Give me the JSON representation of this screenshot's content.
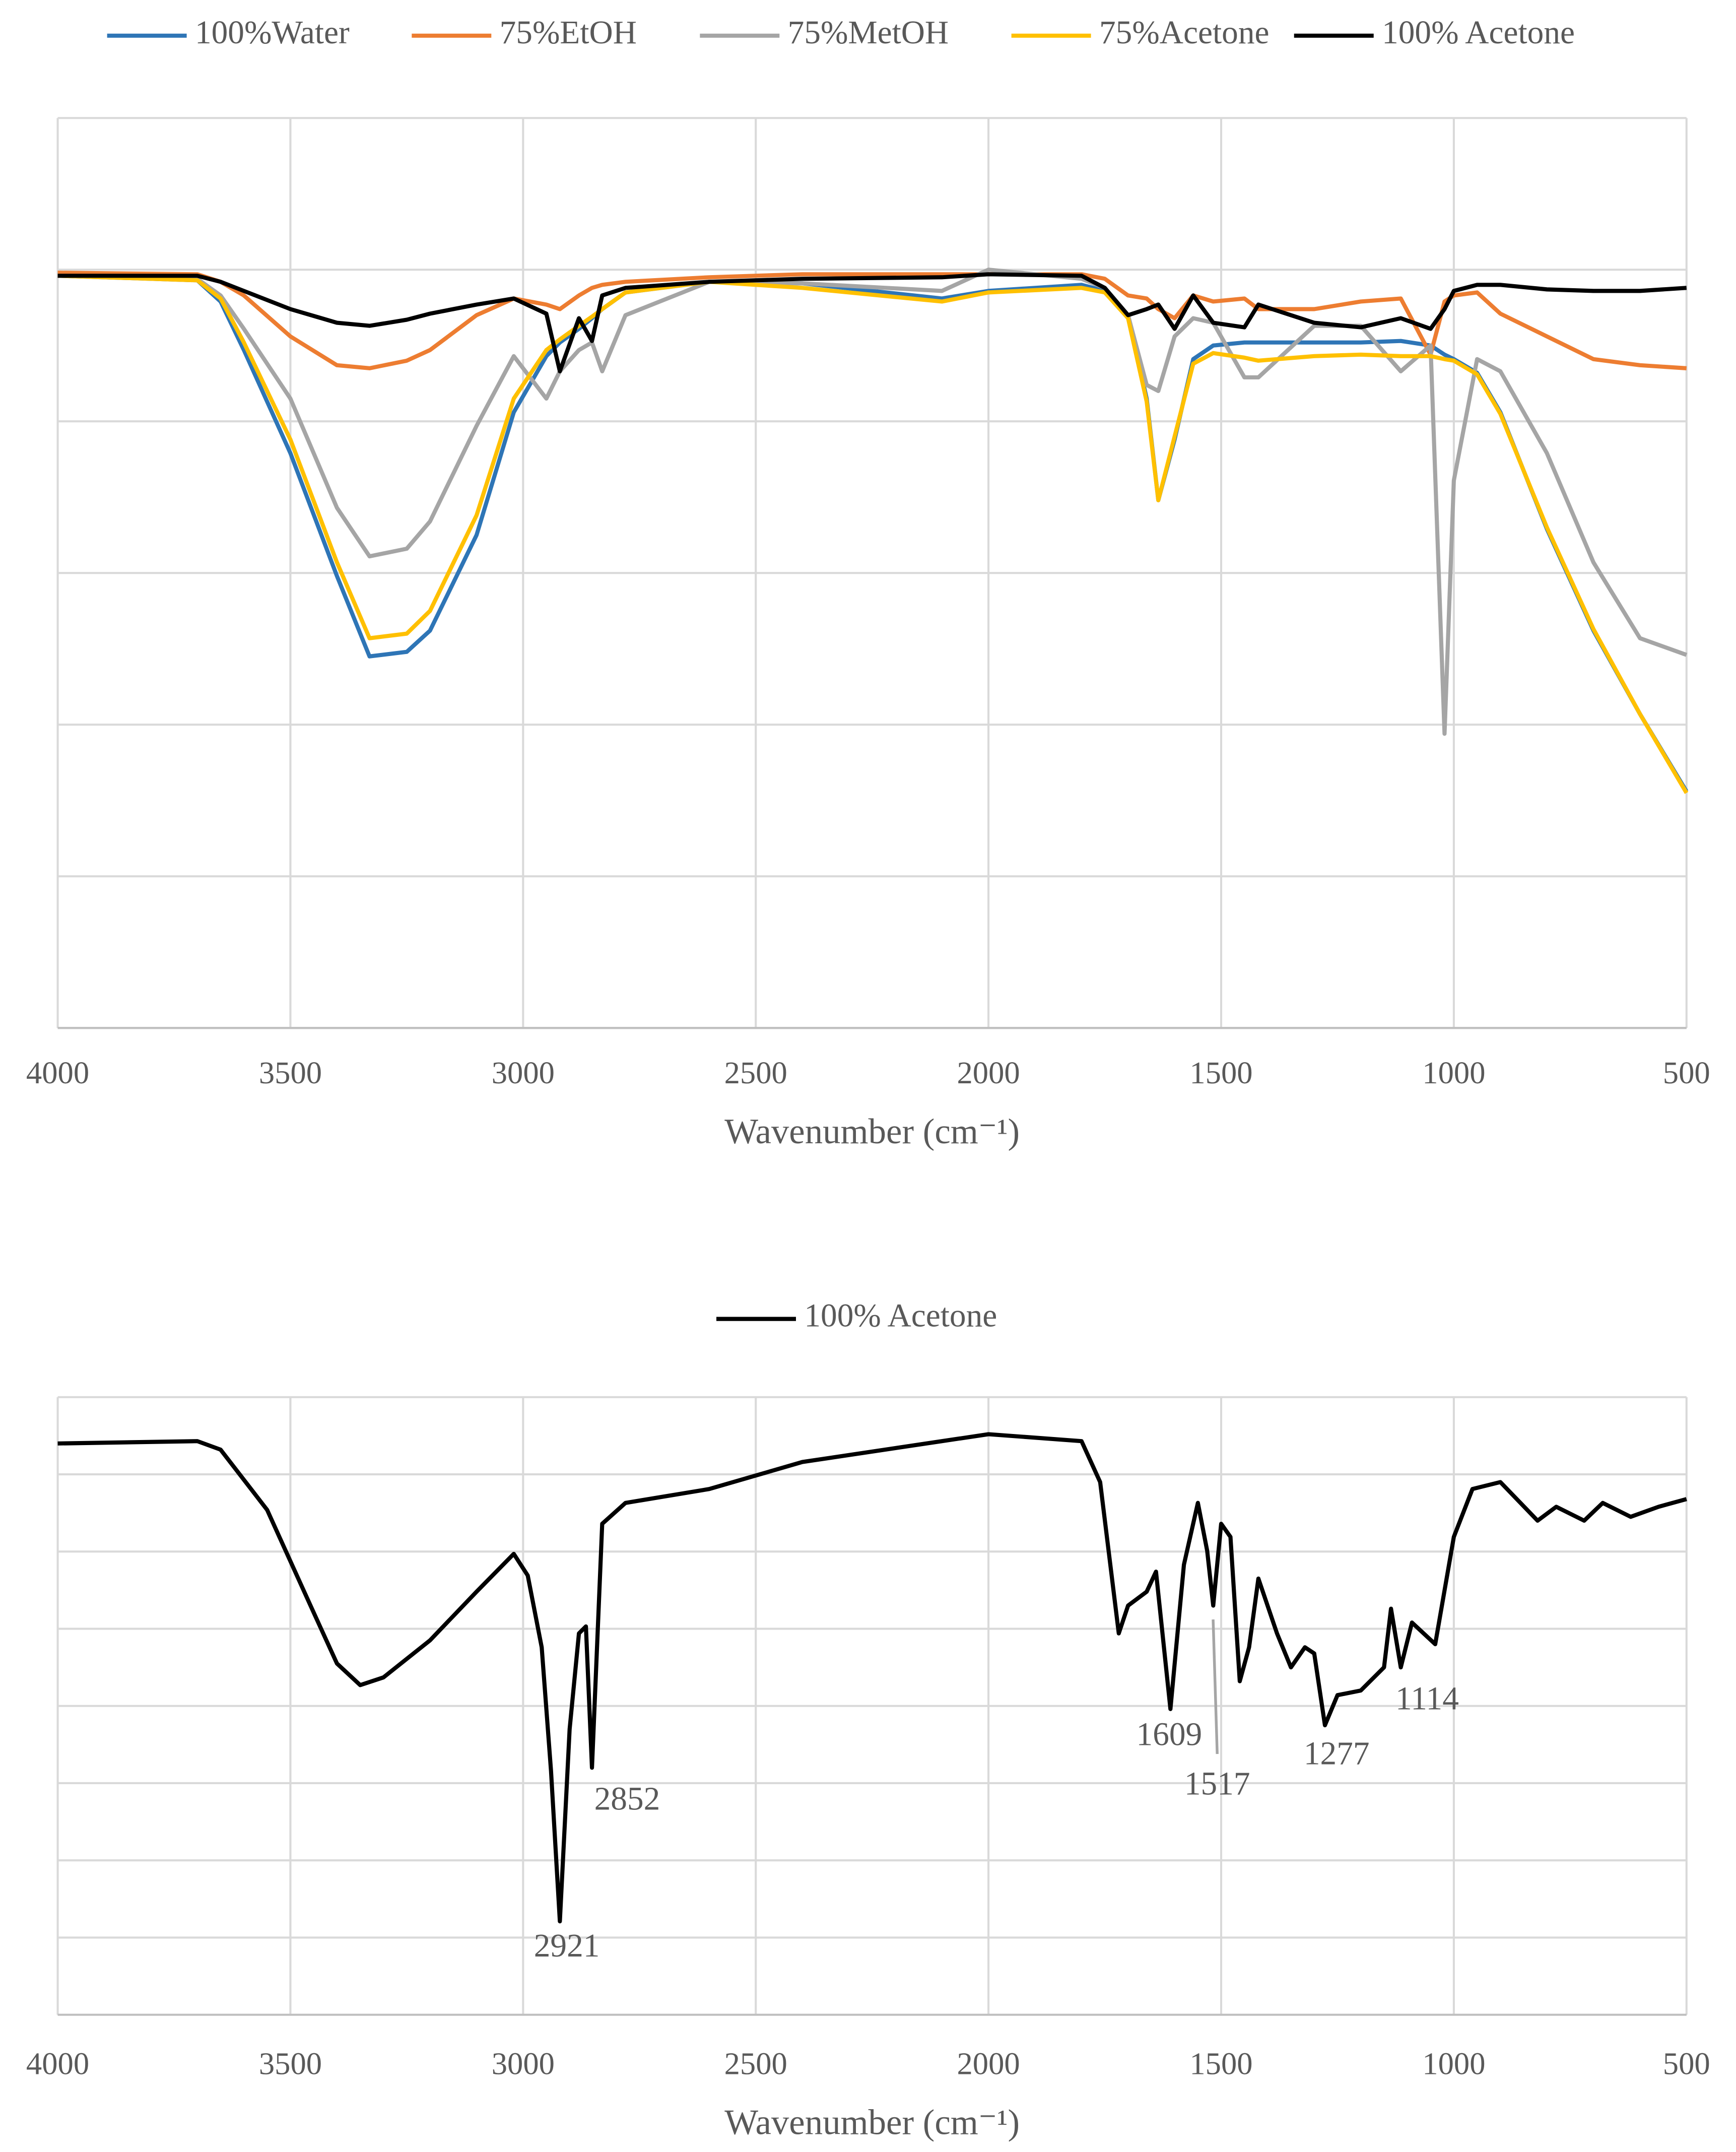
{
  "chart_data": [
    {
      "type": "line",
      "xlabel": "Wavenumber (cm⁻¹)",
      "xlim": [
        4000,
        500
      ],
      "xticks": [
        4000,
        3500,
        3000,
        2500,
        2000,
        1500,
        1000,
        500
      ],
      "ylim": [
        0,
        6
      ],
      "yticks": [
        0,
        1,
        2,
        3,
        4,
        5,
        6
      ],
      "ytick_labels": false,
      "grid": true,
      "legend": "top",
      "x": [
        4000,
        3700,
        3650,
        3600,
        3500,
        3400,
        3330,
        3250,
        3200,
        3100,
        3020,
        2950,
        2921,
        2880,
        2852,
        2830,
        2780,
        2600,
        2400,
        2100,
        2000,
        1800,
        1750,
        1700,
        1660,
        1635,
        1600,
        1560,
        1517,
        1450,
        1420,
        1300,
        1200,
        1114,
        1050,
        1020,
        1000,
        950,
        900,
        800,
        700,
        600,
        500
      ],
      "series": [
        {
          "name": "100%Water",
          "color": "#2e75b6",
          "values": [
            4.96,
            4.93,
            4.79,
            4.47,
            3.79,
            2.98,
            2.45,
            2.48,
            2.62,
            3.25,
            4.06,
            4.43,
            4.52,
            4.61,
            4.68,
            4.74,
            4.85,
            4.92,
            4.91,
            4.81,
            4.86,
            4.9,
            4.86,
            4.7,
            4.15,
            3.48,
            3.88,
            4.41,
            4.5,
            4.52,
            4.52,
            4.52,
            4.52,
            4.53,
            4.5,
            4.44,
            4.41,
            4.32,
            4.06,
            3.29,
            2.62,
            2.07,
            1.56
          ]
        },
        {
          "name": "75%EtOH",
          "color": "#ed7d31",
          "values": [
            4.98,
            4.97,
            4.92,
            4.83,
            4.56,
            4.37,
            4.35,
            4.4,
            4.47,
            4.7,
            4.81,
            4.77,
            4.74,
            4.83,
            4.88,
            4.9,
            4.92,
            4.95,
            4.97,
            4.97,
            4.97,
            4.97,
            4.94,
            4.83,
            4.81,
            4.74,
            4.68,
            4.83,
            4.79,
            4.81,
            4.74,
            4.74,
            4.79,
            4.81,
            4.44,
            4.79,
            4.83,
            4.85,
            4.71,
            4.56,
            4.41,
            4.37,
            4.35
          ]
        },
        {
          "name": "75%MetOH",
          "color": "#a5a5a5",
          "values": [
            4.96,
            4.94,
            4.83,
            4.61,
            4.15,
            3.43,
            3.11,
            3.16,
            3.34,
            3.97,
            4.43,
            4.15,
            4.33,
            4.47,
            4.52,
            4.33,
            4.7,
            4.92,
            4.91,
            4.86,
            5.0,
            4.94,
            4.88,
            4.7,
            4.24,
            4.2,
            4.56,
            4.68,
            4.65,
            4.29,
            4.29,
            4.63,
            4.63,
            4.33,
            4.5,
            1.94,
            3.61,
            4.41,
            4.33,
            3.79,
            3.07,
            2.57,
            2.46
          ]
        },
        {
          "name": "75%Acetone",
          "color": "#ffc000",
          "values": [
            4.96,
            4.93,
            4.81,
            4.52,
            3.88,
            3.07,
            2.57,
            2.6,
            2.75,
            3.38,
            4.15,
            4.47,
            4.54,
            4.63,
            4.69,
            4.74,
            4.85,
            4.92,
            4.88,
            4.79,
            4.85,
            4.88,
            4.85,
            4.68,
            4.13,
            3.48,
            3.9,
            4.38,
            4.45,
            4.42,
            4.4,
            4.43,
            4.44,
            4.43,
            4.43,
            4.41,
            4.4,
            4.31,
            4.05,
            3.3,
            2.63,
            2.07,
            1.55
          ]
        },
        {
          "name": "100% Acetone",
          "color": "#000000",
          "values": [
            4.96,
            4.96,
            4.92,
            4.86,
            4.74,
            4.65,
            4.63,
            4.67,
            4.71,
            4.77,
            4.81,
            4.71,
            4.33,
            4.68,
            4.53,
            4.83,
            4.88,
            4.92,
            4.94,
            4.95,
            4.97,
            4.96,
            4.88,
            4.7,
            4.74,
            4.77,
            4.61,
            4.83,
            4.65,
            4.62,
            4.77,
            4.65,
            4.62,
            4.68,
            4.61,
            4.74,
            4.86,
            4.9,
            4.9,
            4.87,
            4.86,
            4.86,
            4.88
          ]
        }
      ]
    },
    {
      "type": "line",
      "xlabel": "Wavenumber (cm⁻¹)",
      "xlim": [
        4000,
        500
      ],
      "xticks": [
        4000,
        3500,
        3000,
        2500,
        2000,
        1500,
        1000,
        500
      ],
      "ylim": [
        0,
        8
      ],
      "yticks": [
        0,
        1,
        2,
        3,
        4,
        5,
        6,
        7,
        8
      ],
      "ytick_labels": false,
      "grid": true,
      "legend": "top",
      "x": [
        4000,
        3700,
        3650,
        3550,
        3450,
        3400,
        3350,
        3300,
        3200,
        3100,
        3020,
        2990,
        2960,
        2940,
        2921,
        2900,
        2880,
        2865,
        2852,
        2830,
        2780,
        2600,
        2400,
        2100,
        2000,
        1800,
        1760,
        1720,
        1700,
        1660,
        1640,
        1609,
        1580,
        1550,
        1530,
        1517,
        1500,
        1480,
        1460,
        1440,
        1420,
        1380,
        1350,
        1320,
        1300,
        1277,
        1250,
        1200,
        1150,
        1135,
        1114,
        1090,
        1040,
        1000,
        960,
        900,
        820,
        780,
        720,
        680,
        620,
        560,
        500
      ],
      "series": [
        {
          "name": "100% Acetone",
          "color": "#000000",
          "values": [
            7.4,
            7.43,
            7.32,
            6.54,
            5.21,
            4.55,
            4.27,
            4.37,
            4.85,
            5.48,
            5.97,
            5.69,
            4.76,
            3.16,
            1.21,
            3.7,
            4.94,
            5.03,
            3.2,
            6.36,
            6.63,
            6.81,
            7.16,
            7.43,
            7.52,
            7.43,
            6.9,
            4.94,
            5.3,
            5.48,
            5.74,
            3.96,
            5.83,
            6.63,
            6.01,
            5.3,
            6.36,
            6.19,
            4.32,
            4.76,
            5.65,
            4.94,
            4.5,
            4.76,
            4.68,
            3.75,
            4.14,
            4.2,
            4.5,
            5.26,
            4.5,
            5.08,
            4.8,
            6.19,
            6.81,
            6.9,
            6.4,
            6.58,
            6.4,
            6.63,
            6.45,
            6.58,
            6.68
          ]
        }
      ],
      "annotations": [
        "2921",
        "2852",
        "1609",
        "1517",
        "1277",
        "1114"
      ]
    }
  ]
}
